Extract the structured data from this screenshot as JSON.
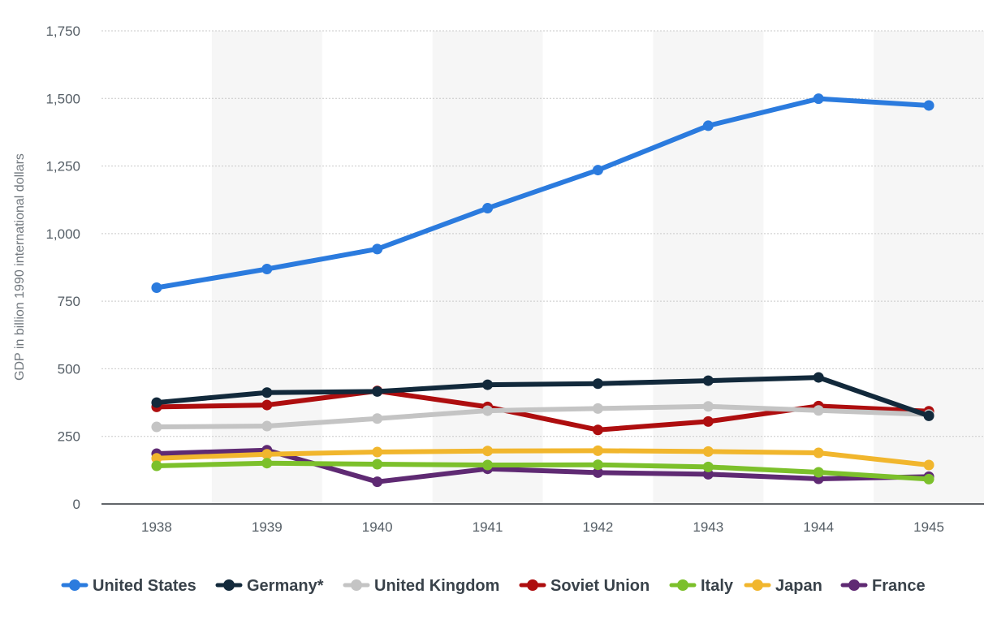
{
  "chart_data": {
    "type": "line",
    "title": "",
    "xlabel": "",
    "ylabel": "GDP in billion 1990 international dollars",
    "categories": [
      "1938",
      "1939",
      "1940",
      "1941",
      "1942",
      "1943",
      "1944",
      "1945"
    ],
    "y_ticks": [
      "0",
      "250",
      "500",
      "750",
      "1,000",
      "1,250",
      "1,500",
      "1,750"
    ],
    "ylim": [
      0,
      1750
    ],
    "grid": true,
    "legend_position": "bottom",
    "series": [
      {
        "name": "United States",
        "color": "#2b7bde",
        "values": [
          800,
          869,
          943,
          1094,
          1235,
          1399,
          1499,
          1474
        ]
      },
      {
        "name": "Germany*",
        "color": "#12293b",
        "values": [
          375,
          412,
          416,
          441,
          445,
          456,
          468,
          326
        ]
      },
      {
        "name": "United Kingdom",
        "color": "#c4c4c4",
        "values": [
          285,
          288,
          316,
          345,
          353,
          361,
          346,
          331
        ]
      },
      {
        "name": "Soviet Union",
        "color": "#ae0e0f",
        "values": [
          359,
          366,
          418,
          359,
          274,
          305,
          362,
          343
        ]
      },
      {
        "name": "Italy",
        "color": "#7cc02b",
        "values": [
          141,
          151,
          147,
          144,
          145,
          137,
          117,
          92
        ]
      },
      {
        "name": "Japan",
        "color": "#f1b62d",
        "values": [
          169,
          184,
          192,
          196,
          197,
          194,
          189,
          144
        ]
      },
      {
        "name": "France",
        "color": "#5f2a73",
        "values": [
          186,
          199,
          82,
          130,
          116,
          110,
          93,
          101
        ]
      }
    ]
  }
}
